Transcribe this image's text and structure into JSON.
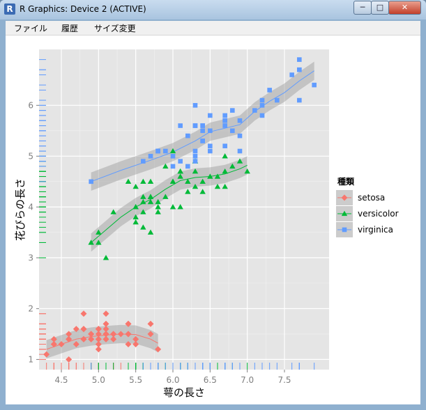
{
  "window": {
    "title": "R Graphics: Device 2 (ACTIVE)",
    "app_icon": "R",
    "minimize_icon": "minimize-icon",
    "maximize_icon": "maximize-icon",
    "close_icon": "close-icon"
  },
  "menu": [
    "ファイル",
    "履歴",
    "サイズ変更"
  ],
  "chart_data": {
    "type": "scatter",
    "xlabel": "萼の長さ",
    "ylabel": "花びらの長さ",
    "xlim": [
      4.2,
      8.1
    ],
    "ylim": [
      0.8,
      7.1
    ],
    "xticks": [
      "4.5",
      "5.0",
      "5.5",
      "6.0",
      "6.5",
      "7.0",
      "7.5"
    ],
    "xtick_values": [
      4.5,
      5.0,
      5.5,
      6.0,
      6.5,
      7.0,
      7.5
    ],
    "yticks": [
      "1",
      "2",
      "3",
      "4",
      "5",
      "6"
    ],
    "ytick_values": [
      1,
      2,
      3,
      4,
      5,
      6
    ],
    "grid": true,
    "rug": true,
    "smooth": "loess with confidence band",
    "legend": {
      "title": "種類",
      "position": "right"
    },
    "series": [
      {
        "name": "setosa",
        "color": "#f8766d",
        "shape": "diamond",
        "x": [
          5.1,
          4.9,
          4.7,
          4.6,
          5.0,
          5.4,
          4.6,
          5.0,
          4.4,
          4.9,
          5.4,
          4.8,
          4.8,
          4.3,
          5.8,
          5.7,
          5.4,
          5.1,
          5.7,
          5.1,
          5.4,
          5.1,
          4.6,
          5.1,
          4.8,
          5.0,
          5.0,
          5.2,
          5.2,
          4.7,
          4.8,
          5.4,
          5.2,
          5.5,
          4.9,
          5.0,
          5.5,
          4.9,
          4.4,
          5.1,
          5.0,
          4.5,
          4.4,
          5.0,
          5.1,
          4.8,
          5.1,
          4.6,
          5.3,
          5.0
        ],
        "y": [
          1.4,
          1.4,
          1.3,
          1.5,
          1.4,
          1.7,
          1.4,
          1.5,
          1.4,
          1.5,
          1.5,
          1.6,
          1.4,
          1.1,
          1.2,
          1.5,
          1.3,
          1.4,
          1.7,
          1.5,
          1.7,
          1.5,
          1.0,
          1.7,
          1.9,
          1.6,
          1.6,
          1.5,
          1.4,
          1.6,
          1.6,
          1.5,
          1.5,
          1.4,
          1.5,
          1.2,
          1.3,
          1.4,
          1.3,
          1.5,
          1.3,
          1.3,
          1.3,
          1.6,
          1.9,
          1.4,
          1.6,
          1.4,
          1.5,
          1.4
        ],
        "smooth_x": [
          4.3,
          4.5,
          4.7,
          4.9,
          5.1,
          5.3,
          5.5,
          5.7,
          5.8
        ],
        "smooth_y": [
          1.2,
          1.3,
          1.4,
          1.45,
          1.48,
          1.5,
          1.49,
          1.4,
          1.32
        ]
      },
      {
        "name": "versicolor",
        "color": "#00ba38",
        "shape": "triangle",
        "x": [
          7.0,
          6.4,
          6.9,
          5.5,
          6.5,
          5.7,
          6.3,
          4.9,
          6.6,
          5.2,
          5.0,
          5.9,
          6.0,
          6.1,
          5.6,
          6.7,
          5.6,
          5.8,
          6.2,
          5.6,
          5.9,
          6.1,
          6.3,
          6.1,
          6.4,
          6.6,
          6.8,
          6.7,
          6.0,
          5.7,
          5.5,
          5.5,
          5.8,
          6.0,
          5.4,
          6.0,
          6.7,
          6.3,
          5.6,
          5.5,
          5.5,
          6.1,
          5.8,
          5.0,
          5.6,
          5.7,
          5.7,
          6.2,
          5.1,
          5.7
        ],
        "y": [
          4.7,
          4.5,
          4.9,
          4.0,
          4.6,
          4.5,
          4.7,
          3.3,
          4.6,
          3.9,
          3.5,
          4.2,
          4.0,
          4.7,
          3.6,
          4.4,
          4.5,
          4.1,
          4.5,
          3.9,
          4.8,
          4.0,
          4.9,
          4.7,
          4.3,
          4.4,
          4.8,
          5.0,
          4.5,
          3.5,
          3.8,
          3.7,
          3.9,
          5.1,
          4.5,
          4.5,
          4.7,
          4.4,
          4.1,
          4.0,
          4.4,
          4.6,
          4.0,
          3.3,
          4.2,
          4.2,
          4.2,
          4.3,
          3.0,
          4.1
        ],
        "smooth_x": [
          4.9,
          5.1,
          5.3,
          5.5,
          5.7,
          5.9,
          6.1,
          6.3,
          6.5,
          6.7,
          6.9,
          7.0
        ],
        "smooth_y": [
          3.3,
          3.55,
          3.8,
          4.0,
          4.15,
          4.35,
          4.52,
          4.58,
          4.6,
          4.65,
          4.75,
          4.82
        ]
      },
      {
        "name": "virginica",
        "color": "#619cff",
        "shape": "square",
        "x": [
          6.3,
          5.8,
          7.1,
          6.3,
          6.5,
          7.6,
          4.9,
          7.3,
          6.7,
          7.2,
          6.5,
          6.4,
          6.8,
          5.7,
          5.8,
          6.4,
          6.5,
          7.7,
          7.7,
          6.0,
          6.9,
          5.6,
          7.7,
          6.3,
          6.7,
          7.2,
          6.2,
          6.1,
          6.4,
          7.2,
          7.4,
          7.9,
          6.4,
          6.3,
          6.1,
          7.7,
          6.3,
          6.4,
          6.0,
          6.9,
          6.7,
          6.9,
          5.8,
          6.8,
          6.7,
          6.7,
          6.3,
          6.5,
          6.2,
          5.9
        ],
        "y": [
          6.0,
          5.1,
          5.9,
          5.6,
          5.8,
          6.6,
          4.5,
          6.3,
          5.8,
          6.1,
          5.1,
          5.3,
          5.5,
          5.0,
          5.1,
          5.3,
          5.5,
          6.7,
          6.9,
          5.0,
          5.7,
          4.9,
          6.7,
          4.9,
          5.7,
          6.0,
          4.8,
          4.9,
          5.6,
          5.8,
          6.1,
          6.4,
          5.6,
          5.1,
          5.6,
          6.1,
          5.6,
          5.5,
          4.8,
          5.4,
          5.6,
          5.1,
          5.1,
          5.9,
          5.7,
          5.2,
          5.0,
          5.2,
          5.4,
          5.1
        ],
        "smooth_x": [
          4.9,
          5.3,
          5.7,
          6.0,
          6.3,
          6.5,
          6.7,
          6.9,
          7.1,
          7.3,
          7.5,
          7.7,
          7.9
        ],
        "smooth_y": [
          4.5,
          4.72,
          4.92,
          5.08,
          5.3,
          5.48,
          5.55,
          5.62,
          5.88,
          6.08,
          6.25,
          6.48,
          6.68
        ]
      }
    ]
  }
}
